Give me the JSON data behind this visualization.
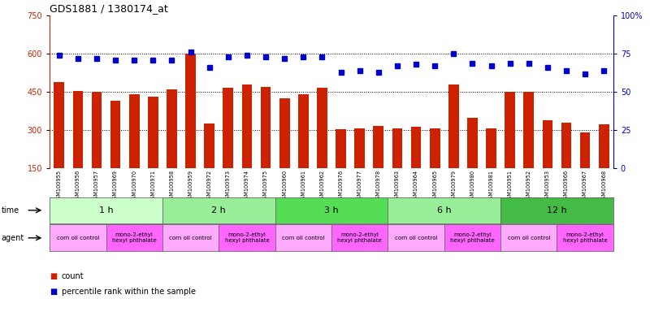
{
  "title": "GDS1881 / 1380174_at",
  "samples": [
    "GSM100955",
    "GSM100956",
    "GSM100957",
    "GSM100969",
    "GSM100970",
    "GSM100971",
    "GSM100958",
    "GSM100959",
    "GSM100972",
    "GSM100973",
    "GSM100974",
    "GSM100975",
    "GSM100960",
    "GSM100961",
    "GSM100962",
    "GSM100976",
    "GSM100977",
    "GSM100978",
    "GSM100963",
    "GSM100964",
    "GSM100965",
    "GSM100979",
    "GSM100980",
    "GSM100981",
    "GSM100951",
    "GSM100952",
    "GSM100953",
    "GSM100966",
    "GSM100967",
    "GSM100968"
  ],
  "counts": [
    490,
    455,
    452,
    415,
    440,
    432,
    462,
    600,
    325,
    468,
    478,
    470,
    425,
    440,
    468,
    305,
    308,
    318,
    308,
    315,
    308,
    478,
    350,
    308,
    452,
    452,
    338,
    330,
    290,
    322
  ],
  "percentiles": [
    74,
    72,
    72,
    71,
    71,
    71,
    71,
    76,
    66,
    73,
    74,
    73,
    72,
    73,
    73,
    63,
    64,
    63,
    67,
    68,
    67,
    75,
    69,
    67,
    69,
    69,
    66,
    64,
    62,
    64
  ],
  "ylim_left": [
    150,
    750
  ],
  "ylim_right": [
    0,
    100
  ],
  "yticks_left": [
    150,
    300,
    450,
    600,
    750
  ],
  "yticks_right": [
    0,
    25,
    50,
    75,
    100
  ],
  "bar_color": "#CC2200",
  "dot_color": "#0000CC",
  "background_color": "#FFFFFF",
  "time_groups": [
    {
      "label": "1 h",
      "start": 0,
      "end": 5,
      "color": "#CCFFCC"
    },
    {
      "label": "2 h",
      "start": 6,
      "end": 11,
      "color": "#99EE99"
    },
    {
      "label": "3 h",
      "start": 12,
      "end": 17,
      "color": "#55DD55"
    },
    {
      "label": "6 h",
      "start": 18,
      "end": 23,
      "color": "#99EE99"
    },
    {
      "label": "12 h",
      "start": 24,
      "end": 29,
      "color": "#44BB44"
    }
  ],
  "agent_groups": [
    {
      "label": "corn oil control",
      "start": 0,
      "end": 2,
      "color": "#FFAAFF"
    },
    {
      "label": "mono-2-ethyl\nhexyl phthalate",
      "start": 3,
      "end": 5,
      "color": "#FF66FF"
    },
    {
      "label": "corn oil control",
      "start": 6,
      "end": 8,
      "color": "#FFAAFF"
    },
    {
      "label": "mono-2-ethyl\nhexyl phthalate",
      "start": 9,
      "end": 11,
      "color": "#FF66FF"
    },
    {
      "label": "corn oil control",
      "start": 12,
      "end": 14,
      "color": "#FFAAFF"
    },
    {
      "label": "mono-2-ethyl\nhexyl phthalate",
      "start": 15,
      "end": 17,
      "color": "#FF66FF"
    },
    {
      "label": "corn oil control",
      "start": 18,
      "end": 20,
      "color": "#FFAAFF"
    },
    {
      "label": "mono-2-ethyl\nhexyl phthalate",
      "start": 21,
      "end": 23,
      "color": "#FF66FF"
    },
    {
      "label": "corn oil control",
      "start": 24,
      "end": 26,
      "color": "#FFAAFF"
    },
    {
      "label": "mono-2-ethyl\nhexyl phthalate",
      "start": 27,
      "end": 29,
      "color": "#FF66FF"
    }
  ],
  "grid_lines": [
    300,
    450,
    600
  ],
  "legend_items": [
    {
      "label": "count",
      "color": "#CC2200"
    },
    {
      "label": "percentile rank within the sample",
      "color": "#0000CC"
    }
  ]
}
